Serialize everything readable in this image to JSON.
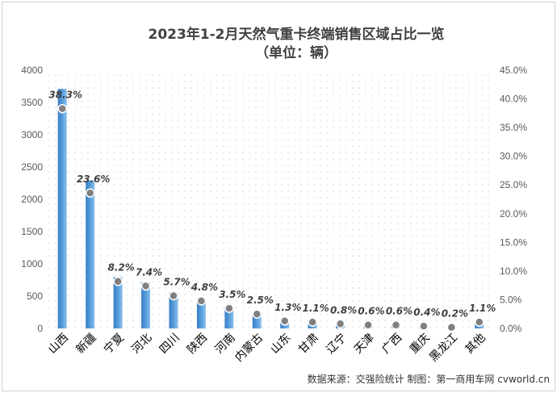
{
  "chart_data": {
    "type": "bar",
    "title": "2023年1-2月天然气重卡终端销售区域占比一览",
    "subtitle": "（单位：辆）",
    "categories": [
      "山西",
      "新疆",
      "宁夏",
      "河北",
      "四川",
      "陕西",
      "河南",
      "内蒙古",
      "山东",
      "甘肃",
      "辽宁",
      "天津",
      "广西",
      "重庆",
      "黑龙江",
      "其他"
    ],
    "series": [
      {
        "type": "bar",
        "axis": "left",
        "values": [
          3710,
          2290,
          795,
          715,
          553,
          466,
          339,
          243,
          126,
          107,
          78,
          58,
          58,
          39,
          19,
          107
        ]
      },
      {
        "type": "line",
        "axis": "right",
        "values": [
          38.3,
          23.6,
          8.2,
          7.4,
          5.7,
          4.8,
          3.5,
          2.5,
          1.3,
          1.1,
          0.8,
          0.6,
          0.6,
          0.4,
          0.2,
          1.1
        ],
        "labels": [
          "38.3%",
          "23.6%",
          "8.2%",
          "7.4%",
          "5.7%",
          "4.8%",
          "3.5%",
          "2.5%",
          "1.3%",
          "1.1%",
          "0.8%",
          "0.6%",
          "0.6%",
          "0.4%",
          "0.2%",
          "1.1%"
        ]
      }
    ],
    "ylim_left": [
      0,
      4000
    ],
    "yticks_left": [
      "0",
      "500",
      "1000",
      "1500",
      "2000",
      "2500",
      "3000",
      "3500",
      "4000"
    ],
    "ylim_right": [
      0,
      45
    ],
    "yticks_right": [
      "0.0%",
      "5.0%",
      "10.0%",
      "15.0%",
      "20.0%",
      "25.0%",
      "30.0%",
      "35.0%",
      "40.0%",
      "45.0%"
    ],
    "grid": "dotted",
    "legend": "none",
    "source": "数据来源：交强险统计  制图：第一商用车网 cvworld.cn",
    "colors": {
      "bar": "#4a90d0",
      "bar_light": "#8fc0ea",
      "marker": "#808080",
      "marker_stroke": "#ffffff"
    }
  }
}
